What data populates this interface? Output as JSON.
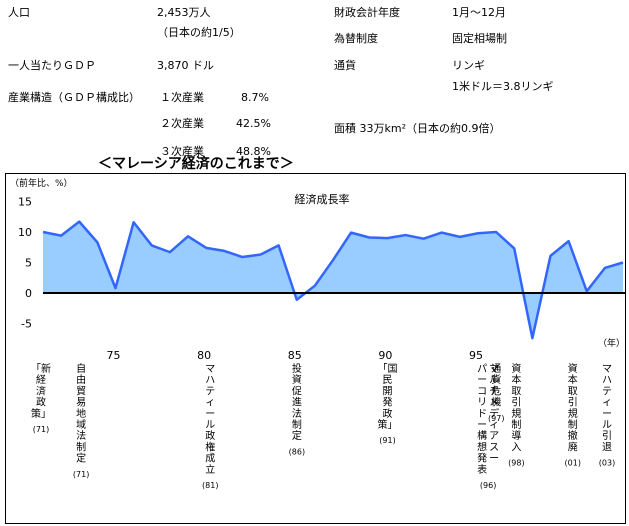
{
  "info": {
    "population_label": "人口",
    "population_value": "2,453万人",
    "population_note": "（日本の約1/5）",
    "gdp_label": "一人当たりＧＤＰ",
    "gdp_value": "3,870 ドル",
    "structure_label": "産業構造（ＧＤＰ構成比）",
    "primary_label": "１次産業",
    "primary_value": "8.7%",
    "secondary_label": "２次産業",
    "secondary_value": "42.5%",
    "tertiary_label": "３次産業",
    "tertiary_value": "48.8%",
    "fiscal_label": "財政会計年度",
    "fiscal_value": "1月～12月",
    "fx_label": "為替制度",
    "fx_value": "固定相場制",
    "currency_label": "通貨",
    "currency_value": "リンギ",
    "currency_rate": "1米ドル＝3.8リンギ",
    "area_text": "面積 33万km²（日本の約0.9倍）"
  },
  "chart_data": {
    "type": "area",
    "title": "経済成長率",
    "section_title": "＜マレーシア経済のこれまで＞",
    "ylabel": "（前年比、%）",
    "xlabel": "（年）",
    "ylim": [
      -10,
      17
    ],
    "y_ticks": [
      15,
      10,
      5,
      0,
      -5
    ],
    "x_ticks": [
      {
        "year": 1975,
        "label": "75"
      },
      {
        "year": 1980,
        "label": "80"
      },
      {
        "year": 1985,
        "label": "85"
      },
      {
        "year": 1990,
        "label": "90"
      },
      {
        "year": 1995,
        "label": "95"
      }
    ],
    "x": [
      1971,
      1972,
      1973,
      1974,
      1975,
      1976,
      1977,
      1978,
      1979,
      1980,
      1981,
      1982,
      1983,
      1984,
      1985,
      1986,
      1987,
      1988,
      1989,
      1990,
      1991,
      1992,
      1993,
      1994,
      1995,
      1996,
      1997,
      1998,
      1999,
      2000,
      2001,
      2002,
      2003
    ],
    "values": [
      10.0,
      9.4,
      11.7,
      8.3,
      0.8,
      11.6,
      7.8,
      6.7,
      9.3,
      7.4,
      6.9,
      5.9,
      6.3,
      7.8,
      -1.1,
      1.2,
      5.4,
      9.9,
      9.1,
      9.0,
      9.5,
      8.9,
      9.9,
      9.2,
      9.8,
      10.0,
      7.3,
      -7.4,
      6.1,
      8.5,
      0.3,
      4.1,
      5.0
    ],
    "fill_color": "#99ccff",
    "line_color": "#3366ff",
    "events": [
      {
        "year": 1971,
        "lines": [
          "「新",
          "経",
          "済",
          "政",
          "策」"
        ],
        "year_label": "(71)"
      },
      {
        "year": 1972,
        "lines": [
          "自",
          "由",
          "貿",
          "易",
          "地",
          "域",
          "法",
          "制",
          "定"
        ],
        "year_label": "(71)"
      },
      {
        "year": 1981,
        "lines": [
          "マ",
          "ハ",
          "テ",
          "ィ",
          "ー",
          "ル",
          "政",
          "権",
          "成",
          "立"
        ],
        "year_label": "(81)"
      },
      {
        "year": 1986,
        "lines": [
          "投",
          "資",
          "促",
          "進",
          "法",
          "制",
          "定"
        ],
        "year_label": "(86)"
      },
      {
        "year": 1991,
        "lines": [
          "「国",
          "民",
          "開",
          "発",
          "政",
          "策」"
        ],
        "year_label": "(91)"
      },
      {
        "year": 1996,
        "lines": [
          "マ",
          "ル",
          "チ",
          "メ",
          "デ",
          "ィ",
          "ア",
          "ス",
          "ー",
          "パ",
          "ー",
          "コ",
          "リ",
          "ド",
          "ー",
          "構",
          "想",
          "発",
          "表"
        ],
        "two_column": true,
        "year_label": "(96)"
      },
      {
        "year": 1997,
        "lines": [
          "通",
          "貨",
          "危",
          "機"
        ],
        "year_label": "(97)"
      },
      {
        "year": 1998,
        "lines": [
          "資",
          "本",
          "取",
          "引",
          "規",
          "制",
          "導",
          "入"
        ],
        "year_label": "(98)"
      },
      {
        "year": 2001,
        "lines": [
          "資",
          "本",
          "取",
          "引",
          "規",
          "制",
          "撤",
          "廃"
        ],
        "year_label": "(01)"
      },
      {
        "year": 2003,
        "lines": [
          "マ",
          "ハ",
          "テ",
          "ィ",
          "ー",
          "ル",
          "引",
          "退"
        ],
        "year_label": "(03)"
      }
    ]
  }
}
